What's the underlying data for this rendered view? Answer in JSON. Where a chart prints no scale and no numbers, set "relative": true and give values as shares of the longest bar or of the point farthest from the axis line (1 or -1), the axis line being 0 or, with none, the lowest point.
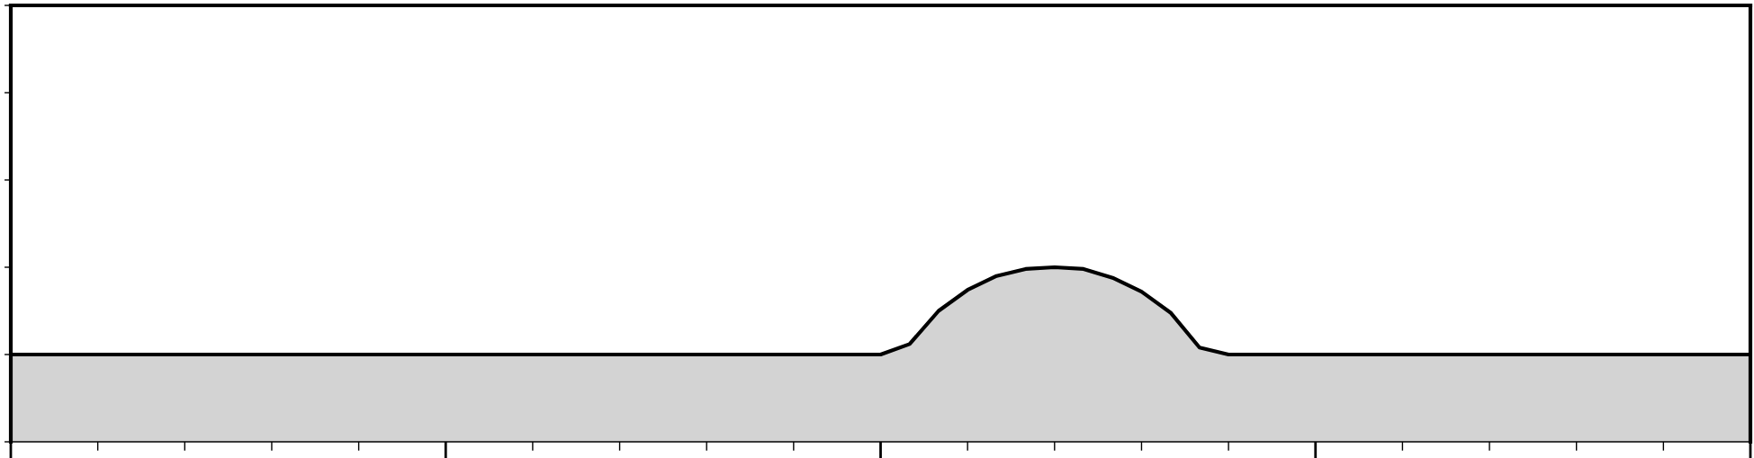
{
  "chart_data": {
    "type": "area",
    "relative": true,
    "categories": [
      null,
      null,
      null,
      null,
      null,
      null,
      null,
      null,
      null,
      null,
      null,
      null,
      null,
      null,
      null,
      null,
      null,
      null,
      null,
      null,
      null,
      null,
      null,
      null,
      null,
      null,
      null,
      null,
      null,
      null,
      null,
      null,
      null,
      null,
      null,
      null,
      null,
      null,
      null,
      null,
      null,
      null,
      null,
      null,
      null,
      null,
      null,
      null,
      null,
      null,
      null,
      null,
      null,
      null,
      null,
      null,
      null,
      null,
      null,
      null,
      null
    ],
    "series": [
      {
        "color": "#d3d3d3",
        "values": [
          0.5,
          0.5,
          0.5,
          0.5,
          0.5,
          0.5,
          0.5,
          0.5,
          0.5,
          0.5,
          0.5,
          0.5,
          0.5,
          0.5,
          0.5,
          0.5,
          0.5,
          0.5,
          0.5,
          0.5,
          0.5,
          0.5,
          0.5,
          0.5,
          0.5,
          0.5,
          0.5,
          0.5,
          0.5,
          0.5,
          0.5,
          0.56,
          0.75,
          0.87,
          0.95,
          0.99,
          1.0,
          0.99,
          0.94,
          0.86,
          0.74,
          0.54,
          0.5,
          0.5,
          0.5,
          0.5,
          0.5,
          0.5,
          0.5,
          0.5,
          0.5,
          0.5,
          0.5,
          0.5,
          0.5,
          0.5,
          0.5,
          0.5,
          0.5,
          0.5,
          0.5
        ]
      }
    ],
    "grid": false,
    "legend": false
  }
}
